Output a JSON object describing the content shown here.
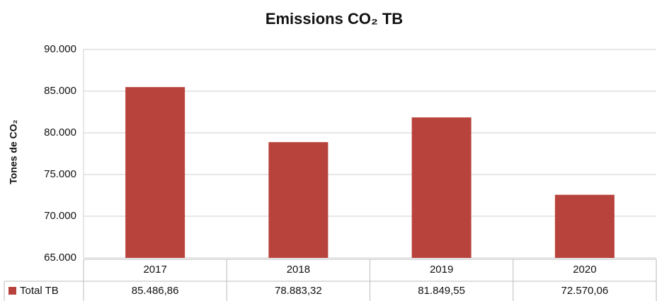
{
  "chart_data": {
    "type": "bar",
    "title": "Emissions CO₂ TB",
    "y_label": "Tones de CO₂",
    "categories": [
      "2017",
      "2018",
      "2019",
      "2020"
    ],
    "series": [
      {
        "name": "Total TB",
        "color": "#b8433c",
        "values": [
          85486.86,
          78883.32,
          81849.55,
          72570.06
        ],
        "value_labels": [
          "85.486,86",
          "78.883,32",
          "81.849,55",
          "72.570,06"
        ]
      }
    ],
    "ylim": [
      65000,
      90000
    ],
    "yticks": [
      {
        "value": 65000,
        "label": "65.000"
      },
      {
        "value": 70000,
        "label": "70.000"
      },
      {
        "value": 75000,
        "label": "75.000"
      },
      {
        "value": 80000,
        "label": "80.000"
      },
      {
        "value": 85000,
        "label": "85.000"
      },
      {
        "value": 90000,
        "label": "90.000"
      }
    ],
    "grid": true
  }
}
